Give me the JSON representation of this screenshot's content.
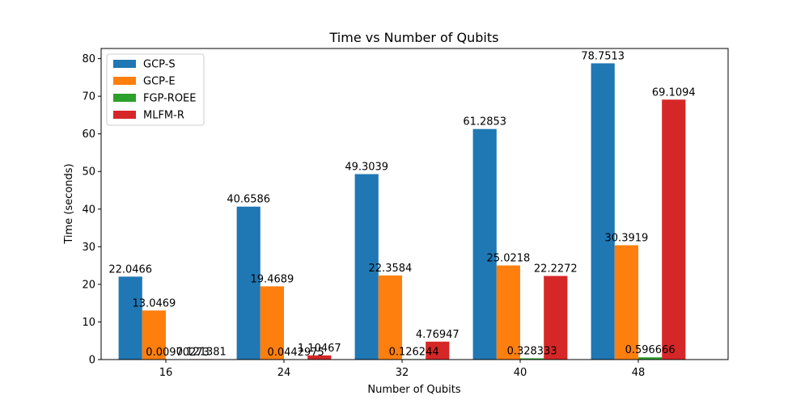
{
  "chart_data": {
    "type": "bar",
    "title": "Time vs Number of Qubits",
    "xlabel": "Number of Qubits",
    "ylabel": "Time (seconds)",
    "categories": [
      "16",
      "24",
      "32",
      "40",
      "48"
    ],
    "ylim": [
      0,
      82.7
    ],
    "yticks": [
      0,
      10,
      20,
      30,
      40,
      50,
      60,
      70,
      80
    ],
    "legend_position": "top-left",
    "grid": false,
    "series": [
      {
        "name": "GCP-S",
        "color": "#1f77b4",
        "values": [
          22.0466,
          40.6586,
          49.3039,
          61.2853,
          78.7513
        ],
        "labels": [
          "22.0466",
          "40.6586",
          "49.3039",
          "61.2853",
          "78.7513"
        ]
      },
      {
        "name": "GCP-E",
        "color": "#ff7f0e",
        "values": [
          13.0469,
          19.4689,
          22.3584,
          25.0218,
          30.3919
        ],
        "labels": [
          "13.0469",
          "19.4689",
          "22.3584",
          "25.0218",
          "30.3919"
        ]
      },
      {
        "name": "FGP-ROEE",
        "color": "#2ca02c",
        "values": [
          0.00970273,
          0.0442975,
          0.126244,
          0.328333,
          0.596666
        ],
        "labels": [
          "0.00970273",
          "0.0442975",
          "0.126244",
          "0.328333",
          "0.596666"
        ]
      },
      {
        "name": "MLFM-R",
        "color": "#d62728",
        "values": [
          0.121381,
          1.10467,
          4.76947,
          22.2272,
          69.1094
        ],
        "labels": [
          "0.121381",
          "1.10467",
          "4.76947",
          "22.2272",
          "69.1094"
        ]
      }
    ]
  }
}
